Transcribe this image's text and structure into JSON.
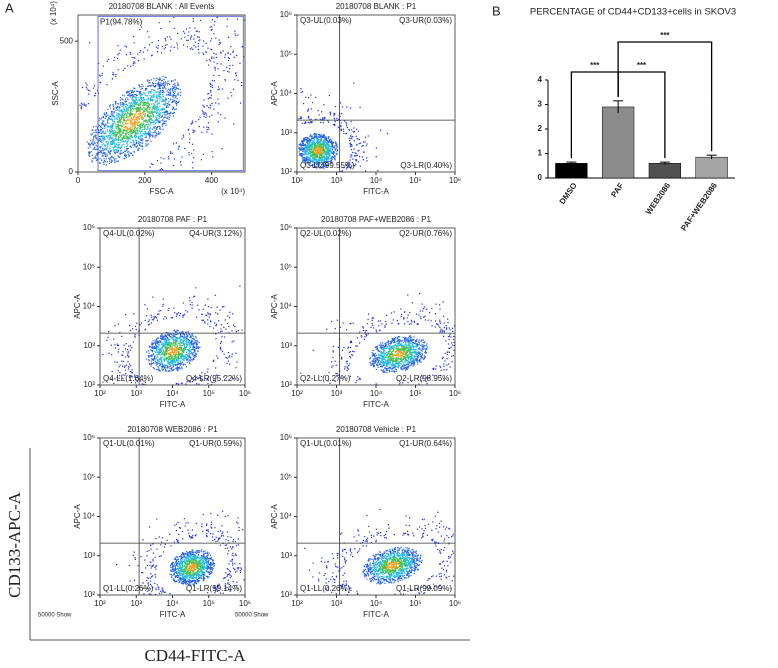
{
  "panel_labels": [
    "A",
    "B"
  ],
  "shared_axis_labels": {
    "y": "CD133-APC-A",
    "x": "CD44-FITC-A"
  },
  "chart_data": [
    {
      "type": "scatter",
      "title": "20180708 BLANK : All Events",
      "x_label": "FSC-A",
      "y_label": "SSC-A",
      "xlim": [
        0,
        500
      ],
      "ylim": [
        0,
        600
      ],
      "xticks": [
        0,
        200,
        400
      ],
      "yticks": [
        0,
        500
      ],
      "x_scale_label": "(x 10⁴)",
      "y_scale_label": "(x 10⁴)",
      "gate": {
        "label": "P1(94.78%)",
        "x": [
          60,
          495
        ],
        "y": [
          5,
          595
        ]
      }
    },
    {
      "type": "scatter",
      "title": "20180708 BLANK : P1",
      "x_label": "FITC-A",
      "y_label": "APC-A",
      "log_scale": true,
      "xlim": [
        100,
        1000000
      ],
      "ylim": [
        100,
        1000000
      ],
      "xticks": [
        {
          "value": 100,
          "label": "10²"
        },
        {
          "value": 1000,
          "label": "10³"
        },
        {
          "value": 10000,
          "label": "10⁴"
        },
        {
          "value": 100000,
          "label": "10⁵"
        },
        {
          "value": 1000000,
          "label": "10⁶"
        }
      ],
      "yticks": [
        {
          "value": 100,
          "label": "10²"
        },
        {
          "value": 1000,
          "label": "10³"
        },
        {
          "value": 10000,
          "label": "10⁴"
        },
        {
          "value": 100000,
          "label": "10⁵"
        },
        {
          "value": 1000000,
          "label": "10⁶"
        }
      ],
      "quadrant_gate": [
        1200,
        2100
      ],
      "quadrants": {
        "UL": "Q3-UL(0.03%)",
        "UR": "Q3-UR(0.03%)",
        "LL": "Q3-LL(99.55%)",
        "LR": "Q3-LR(0.40%)"
      }
    },
    {
      "type": "scatter",
      "title": "20180708 PAF : P1",
      "x_label": "FITC-A",
      "y_label": "APC-A",
      "log_scale": true,
      "xlim": [
        100,
        1000000
      ],
      "ylim": [
        100,
        1000000
      ],
      "xticks": [
        {
          "value": 100,
          "label": "10²"
        },
        {
          "value": 1000,
          "label": "10³"
        },
        {
          "value": 10000,
          "label": "10⁴"
        },
        {
          "value": 100000,
          "label": "10⁵"
        },
        {
          "value": 1000000,
          "label": "10⁶"
        }
      ],
      "yticks": [
        {
          "value": 100,
          "label": "10²"
        },
        {
          "value": 1000,
          "label": "10³"
        },
        {
          "value": 10000,
          "label": "10⁴"
        },
        {
          "value": 100000,
          "label": "10⁵"
        },
        {
          "value": 1000000,
          "label": "10⁶"
        }
      ],
      "quadrant_gate": [
        1200,
        2100
      ],
      "quadrants": {
        "UL": "Q4-UL(0.02%)",
        "UR": "Q4-UR(3.12%)",
        "LL": "Q4-LL(1.64%)",
        "LR": "Q4-LR(95.22%)"
      }
    },
    {
      "type": "scatter",
      "title": "20180708 PAF+WEB2086 : P1",
      "x_label": "FITC-A",
      "y_label": "APC-A",
      "log_scale": true,
      "xlim": [
        100,
        1000000
      ],
      "ylim": [
        100,
        1000000
      ],
      "xticks": [
        {
          "value": 100,
          "label": "10²"
        },
        {
          "value": 1000,
          "label": "10³"
        },
        {
          "value": 10000,
          "label": "10⁴"
        },
        {
          "value": 100000,
          "label": "10⁵"
        },
        {
          "value": 1000000,
          "label": "10⁶"
        }
      ],
      "yticks": [
        {
          "value": 100,
          "label": "10²"
        },
        {
          "value": 1000,
          "label": "10³"
        },
        {
          "value": 10000,
          "label": "10⁴"
        },
        {
          "value": 100000,
          "label": "10⁵"
        },
        {
          "value": 1000000,
          "label": "10⁶"
        }
      ],
      "quadrant_gate": [
        1200,
        2100
      ],
      "quadrants": {
        "UL": "Q2-UL(0.02%)",
        "UR": "Q2-UR(0.76%)",
        "LL": "Q2-LL(0.27%)",
        "LR": "Q2-LR(98.95%)"
      }
    },
    {
      "type": "scatter",
      "title": "20180708 WEB2086 : P1",
      "x_label": "FITC-A",
      "y_label": "APC-A",
      "log_scale": true,
      "xlim": [
        100,
        1000000
      ],
      "ylim": [
        100,
        1000000
      ],
      "xticks": [
        {
          "value": 100,
          "label": "10²"
        },
        {
          "value": 1000,
          "label": "10³"
        },
        {
          "value": 10000,
          "label": "10⁴"
        },
        {
          "value": 100000,
          "label": "10⁵"
        },
        {
          "value": 1000000,
          "label": "10⁶"
        }
      ],
      "yticks": [
        {
          "value": 100,
          "label": "10²"
        },
        {
          "value": 1000,
          "label": "10³"
        },
        {
          "value": 10000,
          "label": "10⁴"
        },
        {
          "value": 100000,
          "label": "10⁵"
        },
        {
          "value": 1000000,
          "label": "10⁶"
        }
      ],
      "quadrant_gate": [
        1200,
        2100
      ],
      "quadrants": {
        "UL": "Q1-UL(0.01%)",
        "UR": "Q1-UR(0.59%)",
        "LL": "Q1-LL(0.26%)",
        "LR": "Q1-LR(99.14%)"
      },
      "footer": "50000 Show"
    },
    {
      "type": "scatter",
      "title": "20180708 Vehicle : P1",
      "x_label": "FITC-A",
      "y_label": "APC-A",
      "log_scale": true,
      "xlim": [
        100,
        1000000
      ],
      "ylim": [
        100,
        1000000
      ],
      "xticks": [
        {
          "value": 100,
          "label": "10²"
        },
        {
          "value": 1000,
          "label": "10³"
        },
        {
          "value": 10000,
          "label": "10⁴"
        },
        {
          "value": 100000,
          "label": "10⁵"
        },
        {
          "value": 1000000,
          "label": "10⁶"
        }
      ],
      "yticks": [
        {
          "value": 100,
          "label": "10²"
        },
        {
          "value": 1000,
          "label": "10³"
        },
        {
          "value": 10000,
          "label": "10⁴"
        },
        {
          "value": 100000,
          "label": "10⁵"
        },
        {
          "value": 1000000,
          "label": "10⁶"
        }
      ],
      "quadrant_gate": [
        1200,
        2100
      ],
      "quadrants": {
        "UL": "Q1-UL(0.01%)",
        "UR": "Q1-UR(0.64%)",
        "LL": "Q1-LL(0.26%)",
        "LR": "Q1-LR(99.09%)"
      },
      "footer": "50000 Show"
    },
    {
      "type": "bar",
      "title": "PERCENTAGE of CD44+CD133+cells in SKOV3",
      "categories": [
        "DMSO",
        "PAF",
        "WEB2086",
        "PAF+WEB2086"
      ],
      "values": [
        0.6,
        2.9,
        0.6,
        0.85
      ],
      "errors": [
        0.05,
        0.25,
        0.05,
        0.08
      ],
      "colors": [
        "#000000",
        "#8c8c8c",
        "#505050",
        "#a4a4a4"
      ],
      "ylim": [
        0,
        4
      ],
      "yticks": [
        0,
        1,
        2,
        3,
        4
      ],
      "significance": [
        {
          "pair": [
            0,
            1
          ],
          "label": "***"
        },
        {
          "pair": [
            1,
            2
          ],
          "label": "***"
        },
        {
          "pair": [
            1,
            3
          ],
          "label": "***"
        }
      ]
    }
  ]
}
